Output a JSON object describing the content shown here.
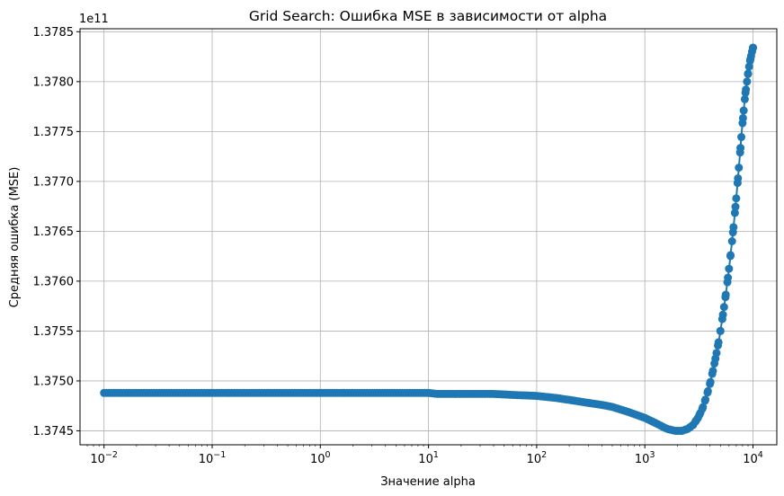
{
  "chart_data": {
    "type": "line",
    "title": "Grid Search: Ошибка MSE в зависимости от alpha",
    "xlabel": "Значение alpha",
    "ylabel": "Средняя ошибка (MSE)",
    "offset_text": "1e11",
    "x_scale": "log",
    "xlim": [
      0.006,
      16600
    ],
    "ylim": [
      1.37436,
      1.37853
    ],
    "y_multiplier": 100000000000.0,
    "grid": true,
    "x_ticks": [
      {
        "value": 0.01,
        "base": "10",
        "exp": "−2"
      },
      {
        "value": 0.1,
        "base": "10",
        "exp": "−1"
      },
      {
        "value": 1,
        "base": "10",
        "exp": "0"
      },
      {
        "value": 10,
        "base": "10",
        "exp": "1"
      },
      {
        "value": 100,
        "base": "10",
        "exp": "2"
      },
      {
        "value": 1000,
        "base": "10",
        "exp": "3"
      },
      {
        "value": 10000,
        "base": "10",
        "exp": "4"
      }
    ],
    "y_ticks": [
      {
        "value": 1.3745,
        "label": "1.3745"
      },
      {
        "value": 1.375,
        "label": "1.3750"
      },
      {
        "value": 1.3755,
        "label": "1.3755"
      },
      {
        "value": 1.376,
        "label": "1.3760"
      },
      {
        "value": 1.3765,
        "label": "1.3765"
      },
      {
        "value": 1.377,
        "label": "1.3770"
      },
      {
        "value": 1.3775,
        "label": "1.3775"
      },
      {
        "value": 1.378,
        "label": "1.3780"
      },
      {
        "value": 1.3785,
        "label": "1.3785"
      }
    ],
    "color": "#1f77b4",
    "series": [
      {
        "x": [
          0.01,
          0.1,
          1,
          10,
          12,
          20,
          40,
          60,
          100,
          150,
          200,
          300,
          400,
          500,
          700,
          1000,
          1300,
          1600,
          1900,
          2200,
          2500,
          2800,
          3100,
          3400,
          3700,
          4000,
          4300,
          4600,
          4900,
          5200,
          5500,
          5800,
          6100,
          6400,
          6700,
          7000,
          7300,
          7600,
          7900,
          8200,
          8500,
          8800,
          9100,
          9400,
          9700,
          10000
        ],
        "y": [
          1.37488,
          1.37488,
          1.37488,
          1.37488,
          1.37487,
          1.37487,
          1.37487,
          1.37486,
          1.37485,
          1.37483,
          1.37481,
          1.37478,
          1.37476,
          1.37474,
          1.37469,
          1.37463,
          1.37457,
          1.37452,
          1.3745,
          1.3745,
          1.37452,
          1.37456,
          1.37463,
          1.37472,
          1.37484,
          1.37497,
          1.37512,
          1.37528,
          1.37544,
          1.37562,
          1.3758,
          1.37599,
          1.37619,
          1.3764,
          1.37661,
          1.37683,
          1.37706,
          1.37729,
          1.37752,
          1.37771,
          1.37788,
          1.378,
          1.37812,
          1.37821,
          1.37828,
          1.37834
        ]
      }
    ]
  }
}
